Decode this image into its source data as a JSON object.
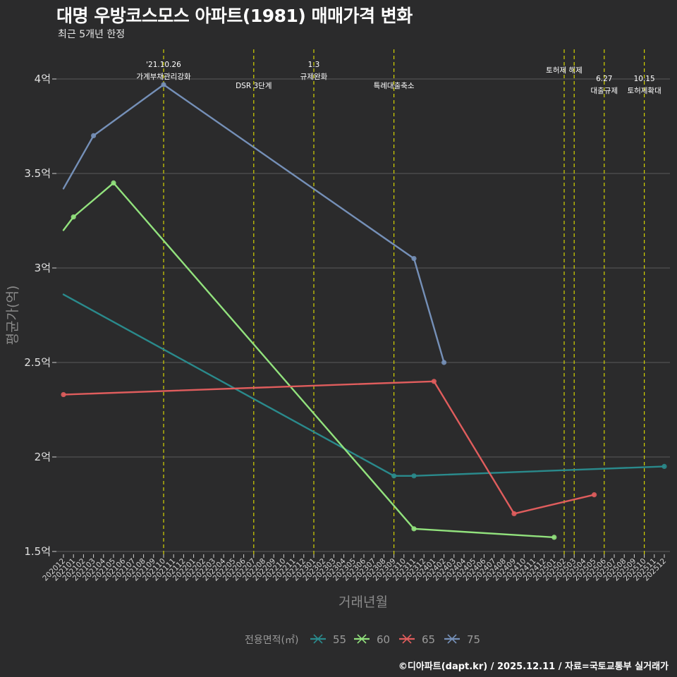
{
  "chart_data": {
    "type": "line",
    "title": "대명 우방코스모스 아파트(1981) 매매가격 변화",
    "subtitle": "최근 5개년 한정",
    "xlabel": "거래년월",
    "ylabel": "평균가(억)",
    "caption": "©디아파트(dapt.kr) / 2025.12.11 / 자료=국토교통부 실거래가",
    "ylim": [
      1.5,
      4.0
    ],
    "yticks": [
      {
        "value": 1.5,
        "label": "1.5억"
      },
      {
        "value": 2.0,
        "label": "2억"
      },
      {
        "value": 2.5,
        "label": "2.5억"
      },
      {
        "value": 3.0,
        "label": "3억"
      },
      {
        "value": 3.5,
        "label": "3.5억"
      },
      {
        "value": 4.0,
        "label": "4억"
      }
    ],
    "categories": [
      "202012",
      "202101",
      "202102",
      "202103",
      "202104",
      "202105",
      "202106",
      "202107",
      "202108",
      "202109",
      "202110",
      "202111",
      "202112",
      "202201",
      "202202",
      "202203",
      "202204",
      "202205",
      "202206",
      "202207",
      "202208",
      "202209",
      "202210",
      "202211",
      "202212",
      "202301",
      "202302",
      "202303",
      "202304",
      "202305",
      "202306",
      "202307",
      "202308",
      "202309",
      "202310",
      "202311",
      "202312",
      "202401",
      "202402",
      "202403",
      "202404",
      "202405",
      "202406",
      "202407",
      "202408",
      "202409",
      "202410",
      "202411",
      "202412",
      "202501",
      "202502",
      "202503",
      "202504",
      "202505",
      "202506",
      "202507",
      "202508",
      "202509",
      "202510",
      "202511",
      "202512"
    ],
    "series": [
      {
        "name": "55",
        "color": "#2a8a8c",
        "points": [
          {
            "x": "202012",
            "y": 2.86
          },
          {
            "x": "202309",
            "y": 1.9
          },
          {
            "x": "202311",
            "y": 1.9
          },
          {
            "x": "202512",
            "y": 1.95
          }
        ],
        "markers": [
          "202309",
          "202311",
          "202512"
        ]
      },
      {
        "name": "60",
        "color": "#92e27d",
        "points": [
          {
            "x": "202012",
            "y": 3.2
          },
          {
            "x": "202101",
            "y": 3.27
          },
          {
            "x": "202105",
            "y": 3.45
          },
          {
            "x": "202311",
            "y": 1.62
          },
          {
            "x": "202501",
            "y": 1.575
          }
        ],
        "markers": [
          "202101",
          "202105",
          "202311",
          "202501"
        ]
      },
      {
        "name": "65",
        "color": "#e05d5d",
        "points": [
          {
            "x": "202012",
            "y": 2.33
          },
          {
            "x": "202401",
            "y": 2.4
          },
          {
            "x": "202409",
            "y": 1.7
          },
          {
            "x": "202505",
            "y": 1.8
          }
        ],
        "markers": [
          "202012",
          "202401",
          "202409",
          "202505"
        ]
      },
      {
        "name": "75",
        "color": "#7590b8",
        "points": [
          {
            "x": "202012",
            "y": 3.42
          },
          {
            "x": "202103",
            "y": 3.7
          },
          {
            "x": "202110",
            "y": 3.97
          },
          {
            "x": "202311",
            "y": 3.05
          },
          {
            "x": "202402",
            "y": 2.5
          }
        ],
        "markers": [
          "202103",
          "202110",
          "202311",
          "202402"
        ]
      }
    ],
    "events": [
      {
        "x": "202110",
        "lines": [
          "'21.10.26",
          "가계부채관리강화"
        ],
        "pos": "high"
      },
      {
        "x": "202207",
        "lines": [
          "DSR 3단계"
        ],
        "pos": "low"
      },
      {
        "x": "202301",
        "lines": [
          "1.3",
          "규제완화"
        ],
        "pos": "high"
      },
      {
        "x": "202309",
        "lines": [
          "특례대출축소"
        ],
        "pos": "low"
      },
      {
        "x": "202502",
        "lines": [
          "토허제 해제"
        ],
        "pos": "mid"
      },
      {
        "x": "202503",
        "lines": [],
        "pos": "none"
      },
      {
        "x": "202506",
        "lines": [
          "6.27",
          "대출규제"
        ],
        "pos": "right"
      },
      {
        "x": "202510",
        "lines": [
          "10.15",
          "토허제확대"
        ],
        "pos": "right"
      }
    ],
    "legend": {
      "title": "전용면적(㎡)",
      "position": "bottom",
      "items": [
        "55",
        "60",
        "65",
        "75"
      ]
    },
    "grid": true
  },
  "colors": {
    "background": "#2b2b2c",
    "grid": "#5a5a5a",
    "event_line": "#d4d400"
  }
}
